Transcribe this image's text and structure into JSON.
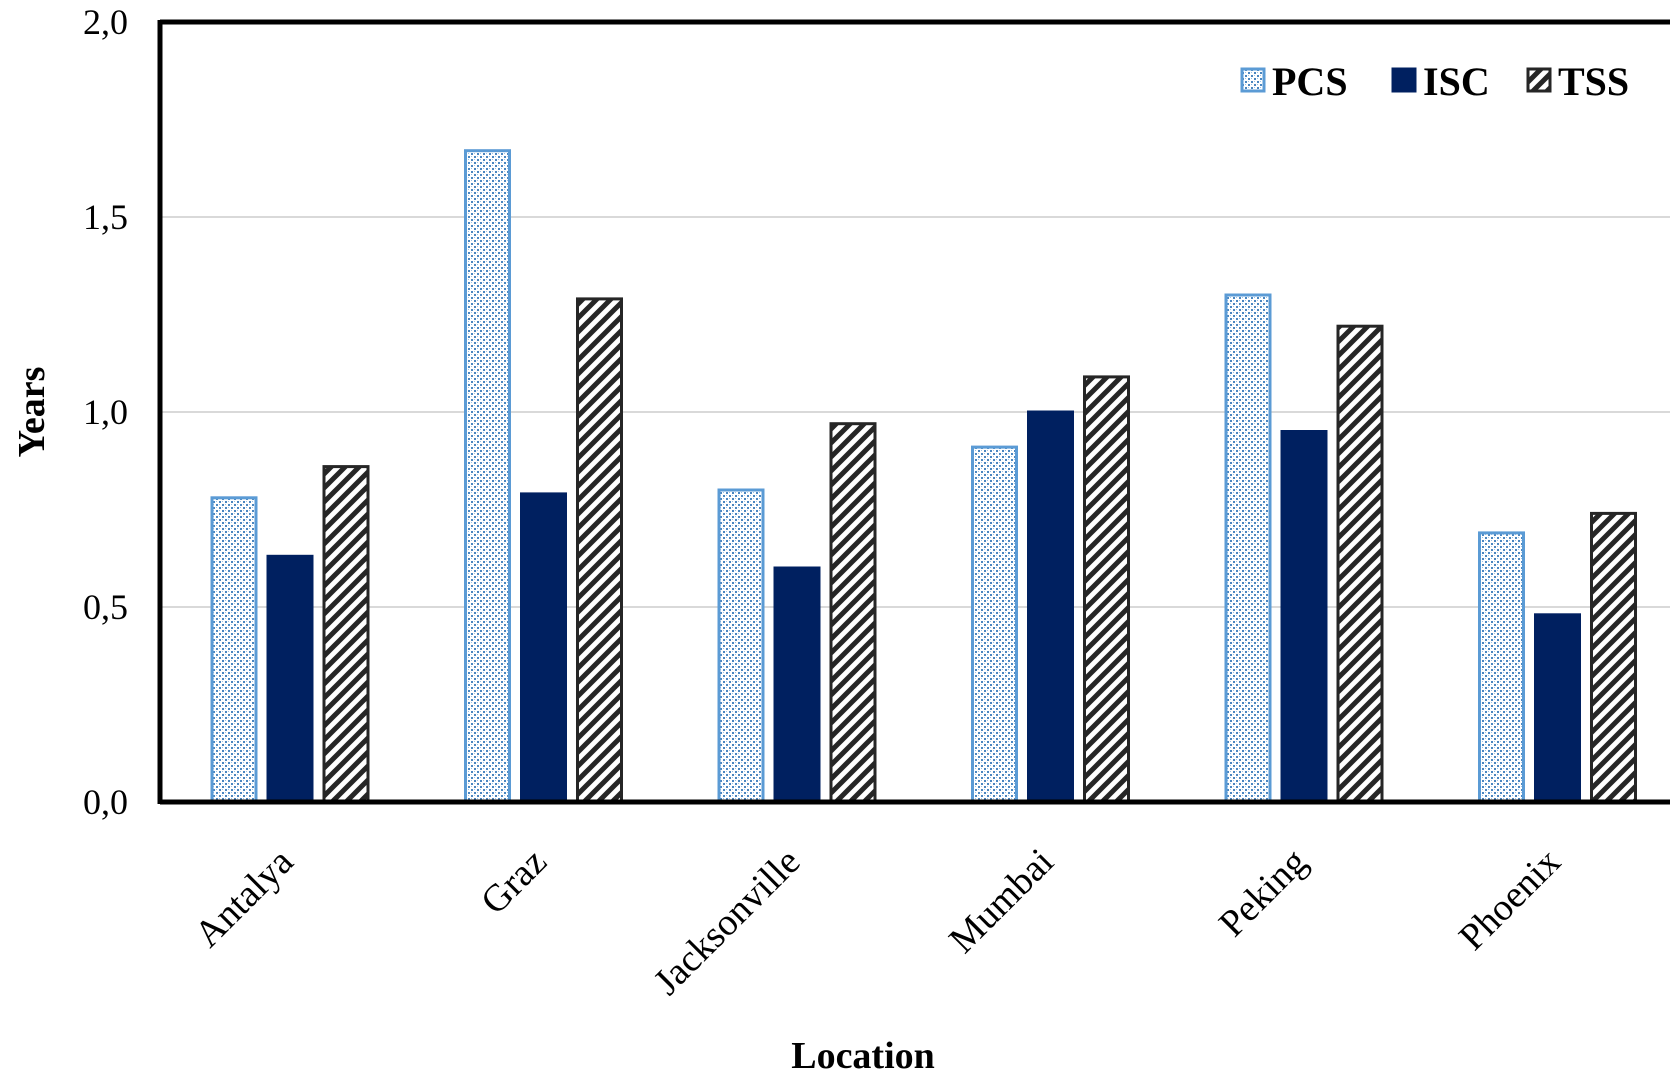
{
  "chart_data": {
    "type": "bar",
    "categories": [
      "Antalya",
      "Graz",
      "Jacksonville",
      "Mumbai",
      "Peking",
      "Phoenix"
    ],
    "series": [
      {
        "name": "PCS",
        "values": [
          0.78,
          1.67,
          0.8,
          0.91,
          1.3,
          0.69
        ]
      },
      {
        "name": "ISC",
        "values": [
          0.63,
          0.79,
          0.6,
          1.0,
          0.95,
          0.48
        ]
      },
      {
        "name": "TSS",
        "values": [
          0.86,
          1.29,
          0.97,
          1.09,
          1.22,
          0.74
        ]
      }
    ],
    "xlabel": "Location",
    "ylabel": "Years",
    "ylim": [
      0,
      2
    ],
    "yticks": [
      "0,0",
      "0,5",
      "1,0",
      "1,5",
      "2,0"
    ],
    "grid": true,
    "legend_position": "top-right",
    "colors": {
      "PCS": "#5b9bd5",
      "ISC": "#002060",
      "TSS": "#262626"
    }
  }
}
